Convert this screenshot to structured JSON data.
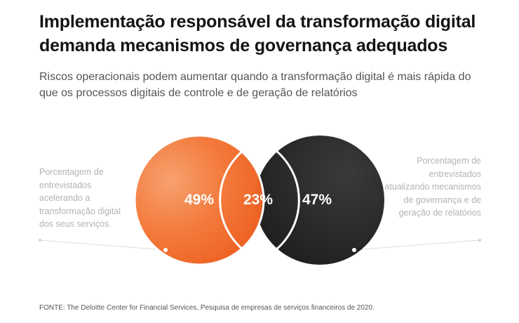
{
  "header": {
    "title": "Implementação responsável da transformação digital demanda mecanismos de governança adequados",
    "subtitle": "Riscos operacionais podem aumentar quando a transformação digital é mais rápida do que os processos digitais de controle e de geração de relatórios"
  },
  "venn": {
    "left_set": {
      "label": "Porcentagem de entrevistados acelerando a transformação digital dos seus serviços",
      "value": "49%",
      "color": "#f26b2b"
    },
    "overlap": {
      "value": "23%"
    },
    "right_set": {
      "label": "Porcentagem de entrevistados atualizando mecanismos de governança e de geração de relatórios",
      "value": "47%",
      "color": "#2a2a2a"
    }
  },
  "footer": {
    "source": "FONTE: The Deloitte Center for Financial Services, Pesquisa de empresas de serviços financeiros de 2020."
  }
}
